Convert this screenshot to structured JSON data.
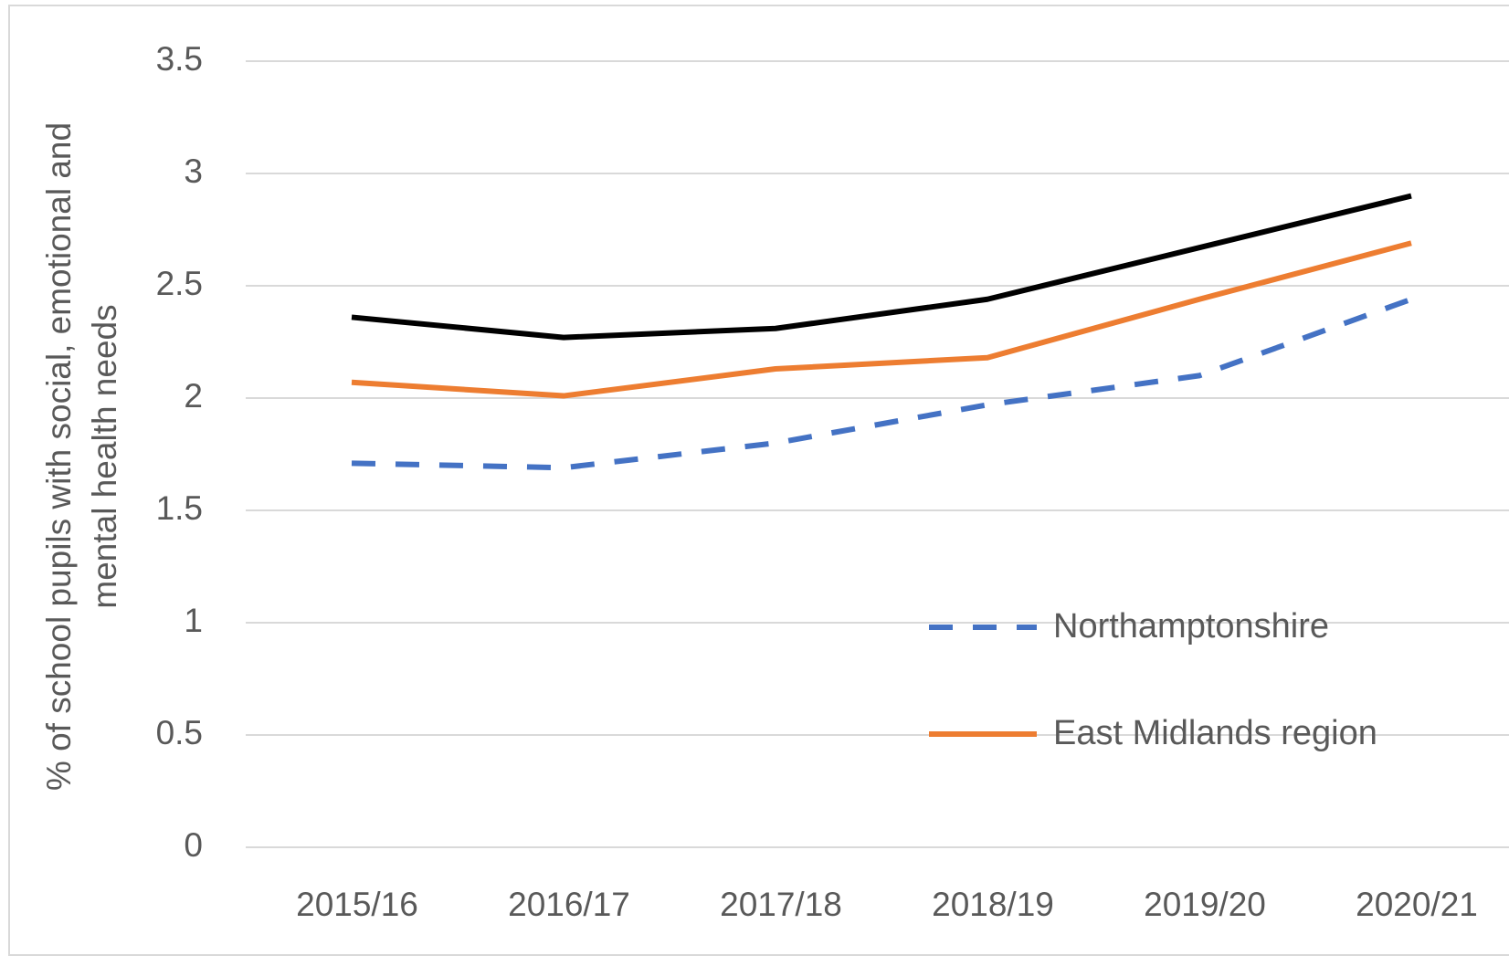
{
  "chart_data": {
    "type": "line",
    "y_label": "% of school pupils with social, emotional and mental health needs",
    "categories": [
      "2015/16",
      "2016/17",
      "2017/18",
      "2018/19",
      "2019/20",
      "2020/21"
    ],
    "series": [
      {
        "color": "#000000",
        "values": [
          2.36,
          2.27,
          2.31,
          2.44,
          2.67,
          2.9
        ]
      },
      {
        "name": "East Midlands region",
        "color": "#ed7d31",
        "values": [
          2.07,
          2.01,
          2.13,
          2.18,
          2.44,
          2.69
        ]
      },
      {
        "name": "Northamptonshire",
        "color": "#4472c4",
        "dashed": true,
        "values": [
          1.71,
          1.69,
          1.8,
          1.97,
          2.1,
          2.44
        ]
      }
    ],
    "ylim": [
      0,
      3.5
    ],
    "yticks": [
      0,
      0.5,
      1,
      1.5,
      2,
      2.5,
      3,
      3.5
    ],
    "grid": true
  }
}
